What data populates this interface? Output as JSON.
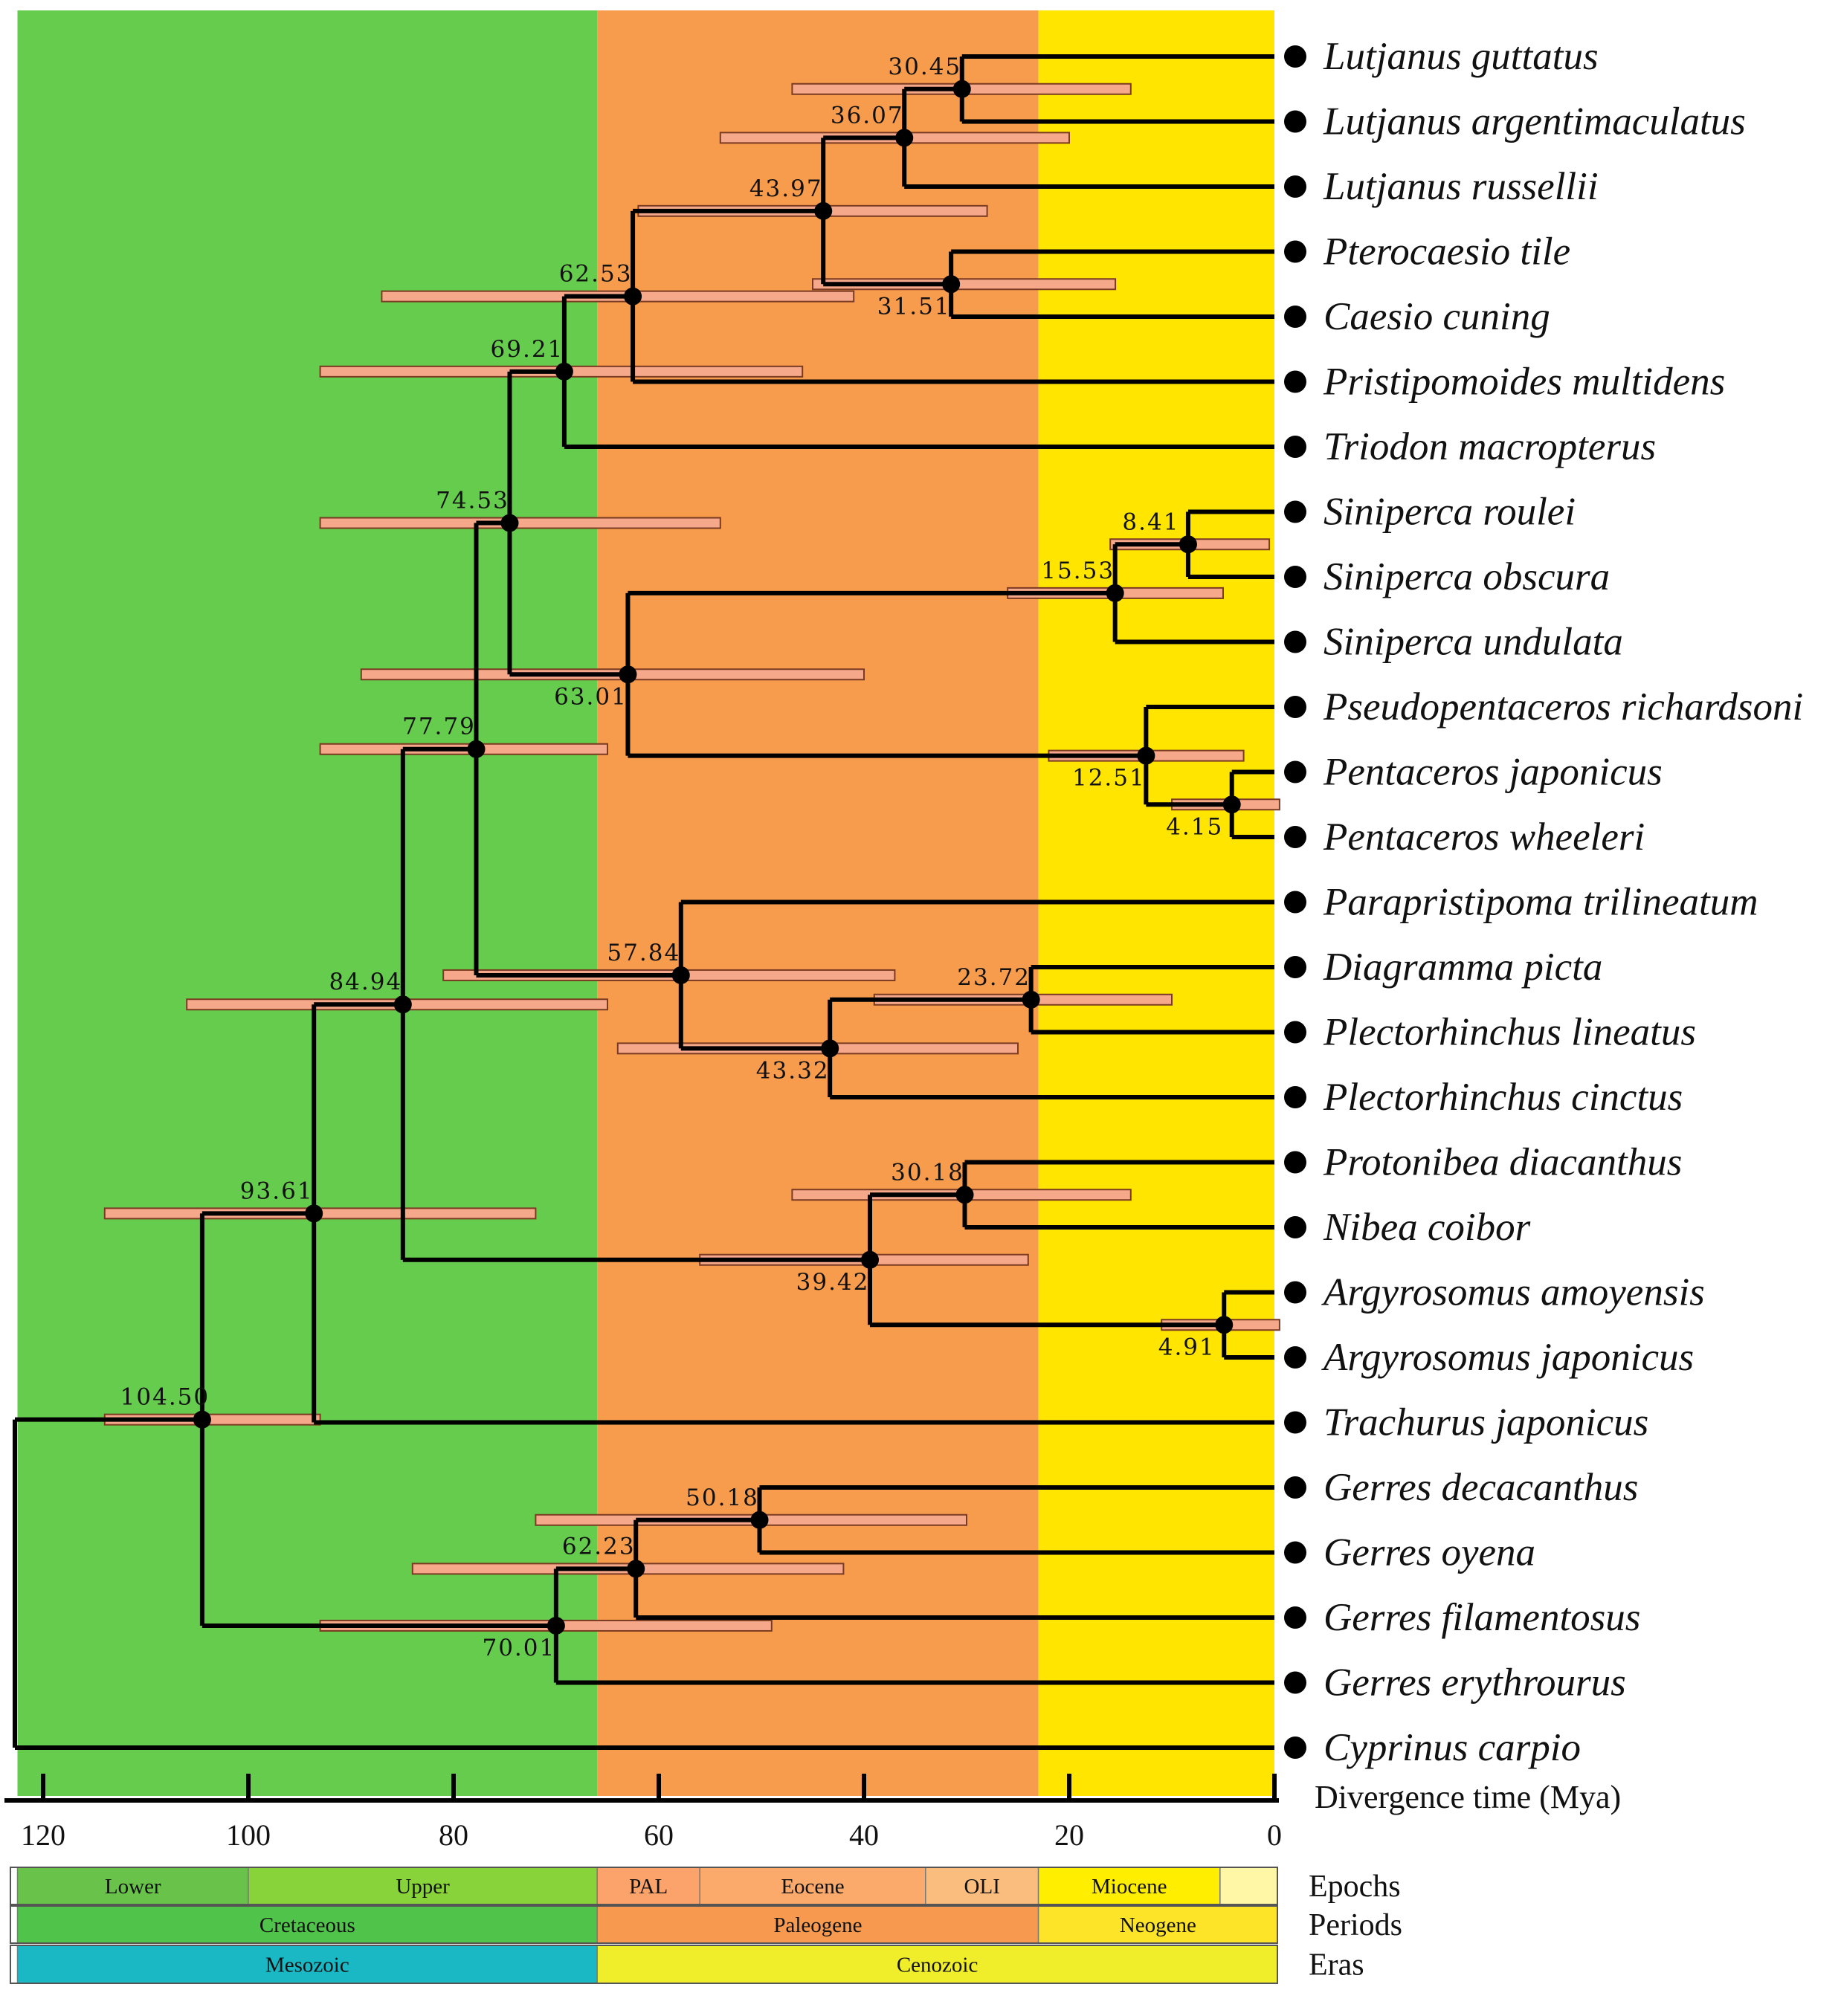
{
  "colors": {
    "cretaceous": "#66cc4d",
    "paleogene": "#f79b4d",
    "neogene": "#ffe500",
    "hpd_fill": "#f6a98a",
    "branch": "#000000",
    "lower": "#69c34b",
    "upper": "#88d33a",
    "pal": "#fba36a",
    "eocene": "#fbaa6c",
    "oli": "#fbbd7d",
    "miocene": "#ffee00",
    "pliocene": "#fff7a6",
    "cretaceous_bar": "#4fc34a",
    "paleogene_bar": "#f79a4f",
    "neogene_bar": "#fde428",
    "mesozoic": "#1ab8c4",
    "cenozoic": "#f0ee2a"
  },
  "taxa": [
    "Lutjanus guttatus",
    "Lutjanus argentimaculatus",
    "Lutjanus russellii",
    "Pterocaesio tile",
    "Caesio cuning",
    "Pristipomoides multidens",
    "Triodon macropterus",
    "Siniperca roulei",
    "Siniperca obscura",
    "Siniperca undulata",
    "Pseudopentaceros richardsoni",
    "Pentaceros japonicus",
    "Pentaceros wheeleri",
    "Parapristipoma trilineatum",
    "Diagramma picta",
    "Plectorhinchus lineatus",
    "Plectorhinchus cinctus",
    "Protonibea diacanthus",
    "Nibea coibor",
    "Argyrosomus amoyensis",
    "Argyrosomus japonicus",
    "Trachurus japonicus",
    "Gerres decacanthus",
    "Gerres oyena",
    "Gerres filamentosus",
    "Gerres erythrourus",
    "Cyprinus carpio"
  ],
  "nodes": [
    {
      "id": "n1",
      "age": 30.45,
      "label": "30.45",
      "children": [
        0,
        1
      ],
      "hpd": [
        47,
        14
      ],
      "label_pos": "above"
    },
    {
      "id": "n2",
      "age": 36.07,
      "label": "36.07",
      "children": [
        "n1",
        2
      ],
      "hpd": [
        54,
        20
      ],
      "label_pos": "above"
    },
    {
      "id": "n3",
      "age": 31.51,
      "label": "31.51",
      "children": [
        3,
        4
      ],
      "hpd": [
        45,
        15.5
      ],
      "label_pos": "below"
    },
    {
      "id": "n4",
      "age": 43.97,
      "label": "43.97",
      "children": [
        "n2",
        "n3"
      ],
      "hpd": [
        62,
        28
      ],
      "label_pos": "above"
    },
    {
      "id": "n5",
      "age": 62.53,
      "label": "62.53",
      "children": [
        "n4",
        5
      ],
      "hpd": [
        87,
        41
      ],
      "label_pos": "above"
    },
    {
      "id": "n6",
      "age": 69.21,
      "label": "69.21",
      "children": [
        "n5",
        6
      ],
      "hpd": [
        93,
        46
      ],
      "label_pos": "above"
    },
    {
      "id": "n7",
      "age": 8.41,
      "label": "8.41",
      "children": [
        7,
        8
      ],
      "hpd": [
        16,
        0.5
      ],
      "label_pos": "above"
    },
    {
      "id": "n8",
      "age": 15.53,
      "label": "15.53",
      "children": [
        "n7",
        9
      ],
      "hpd": [
        26,
        5
      ],
      "label_pos": "above"
    },
    {
      "id": "n9",
      "age": 4.15,
      "label": "4.15",
      "children": [
        11,
        12
      ],
      "hpd": [
        10,
        -0.5
      ],
      "label_pos": "below"
    },
    {
      "id": "n10",
      "age": 12.51,
      "label": "12.51",
      "children": [
        10,
        "n9"
      ],
      "hpd": [
        22,
        3
      ],
      "label_pos": "below"
    },
    {
      "id": "n11",
      "age": 63.01,
      "label": "63.01",
      "children": [
        "n8",
        "n10"
      ],
      "hpd": [
        89,
        40
      ],
      "label_pos": "below"
    },
    {
      "id": "n12",
      "age": 74.53,
      "label": "74.53",
      "children": [
        "n6",
        "n11"
      ],
      "hpd": [
        93,
        54
      ],
      "label_pos": "above"
    },
    {
      "id": "n13",
      "age": 23.72,
      "label": "23.72",
      "children": [
        14,
        15
      ],
      "hpd": [
        39,
        10
      ],
      "label_pos": "above"
    },
    {
      "id": "n14",
      "age": 43.32,
      "label": "43.32",
      "children": [
        "n13",
        16
      ],
      "hpd": [
        64,
        25
      ],
      "label_pos": "below"
    },
    {
      "id": "n15",
      "age": 57.84,
      "label": "57.84",
      "children": [
        13,
        "n14"
      ],
      "hpd": [
        81,
        37
      ],
      "label_pos": "above"
    },
    {
      "id": "n16",
      "age": 77.79,
      "label": "77.79",
      "children": [
        "n12",
        "n15"
      ],
      "hpd": [
        93,
        65
      ],
      "label_pos": "above"
    },
    {
      "id": "n17",
      "age": 30.18,
      "label": "30.18",
      "children": [
        17,
        18
      ],
      "hpd": [
        47,
        14
      ],
      "label_pos": "above"
    },
    {
      "id": "n18",
      "age": 4.91,
      "label": "4.91",
      "children": [
        19,
        20
      ],
      "hpd": [
        11,
        -0.5
      ],
      "label_pos": "below"
    },
    {
      "id": "n19",
      "age": 39.42,
      "label": "39.42",
      "children": [
        "n17",
        "n18"
      ],
      "hpd": [
        56,
        24
      ],
      "label_pos": "below"
    },
    {
      "id": "n20",
      "age": 84.94,
      "label": "84.94",
      "children": [
        "n16",
        "n19"
      ],
      "hpd": [
        106,
        65
      ],
      "label_pos": "above"
    },
    {
      "id": "n21",
      "age": 93.61,
      "label": "93.61",
      "children": [
        "n20",
        21
      ],
      "hpd": [
        114,
        72
      ],
      "label_pos": "above"
    },
    {
      "id": "n22",
      "age": 50.18,
      "label": "50.18",
      "children": [
        22,
        23
      ],
      "hpd": [
        72,
        30
      ],
      "label_pos": "above"
    },
    {
      "id": "n23",
      "age": 62.23,
      "label": "62.23",
      "children": [
        "n22",
        24
      ],
      "hpd": [
        84,
        42
      ],
      "label_pos": "above"
    },
    {
      "id": "n24",
      "age": 70.01,
      "label": "70.01",
      "children": [
        "n23",
        25
      ],
      "hpd": [
        93,
        49
      ],
      "label_pos": "below"
    },
    {
      "id": "n25",
      "age": 104.5,
      "label": "104.50",
      "children": [
        "n21",
        "n24"
      ],
      "hpd": [
        114,
        93
      ],
      "label_pos": "above"
    },
    {
      "id": "root",
      "age": 122.5,
      "label": "",
      "children": [
        "n25",
        26
      ],
      "hpd": null,
      "label_pos": "none"
    }
  ],
  "axis": {
    "title": "Divergence time (Mya)",
    "ticks": [
      120,
      100,
      80,
      60,
      40,
      20,
      0
    ],
    "range": [
      122.5,
      0
    ]
  },
  "periods_background": [
    {
      "name": "cretaceous",
      "from": 122.5,
      "to": 66
    },
    {
      "name": "paleogene",
      "from": 66,
      "to": 23
    },
    {
      "name": "neogene",
      "from": 23,
      "to": 0
    }
  ],
  "timescale": {
    "epochs_label": "Epochs",
    "periods_label": "Periods",
    "eras_label": "Eras",
    "epochs": [
      {
        "name": "Lower",
        "from": 122.5,
        "to": 100,
        "color_key": "lower"
      },
      {
        "name": "Upper",
        "from": 100,
        "to": 66,
        "color_key": "upper"
      },
      {
        "name": "PAL",
        "from": 66,
        "to": 56,
        "color_key": "pal"
      },
      {
        "name": "Eocene",
        "from": 56,
        "to": 34,
        "color_key": "eocene"
      },
      {
        "name": "OLI",
        "from": 34,
        "to": 23,
        "color_key": "oli"
      },
      {
        "name": "Miocene",
        "from": 23,
        "to": 5.3,
        "color_key": "miocene"
      },
      {
        "name": "",
        "from": 5.3,
        "to": -0.5,
        "color_key": "pliocene"
      }
    ],
    "periods": [
      {
        "name": "Cretaceous",
        "from": 122.5,
        "to": 66,
        "color_key": "cretaceous_bar"
      },
      {
        "name": "Paleogene",
        "from": 66,
        "to": 23,
        "color_key": "paleogene_bar"
      },
      {
        "name": "Neogene",
        "from": 23,
        "to": -0.5,
        "color_key": "neogene_bar"
      }
    ],
    "eras": [
      {
        "name": "Mesozoic",
        "from": 122.5,
        "to": 66,
        "color_key": "mesozoic"
      },
      {
        "name": "Cenozoic",
        "from": 66,
        "to": -0.5,
        "color_key": "cenozoic"
      }
    ]
  }
}
